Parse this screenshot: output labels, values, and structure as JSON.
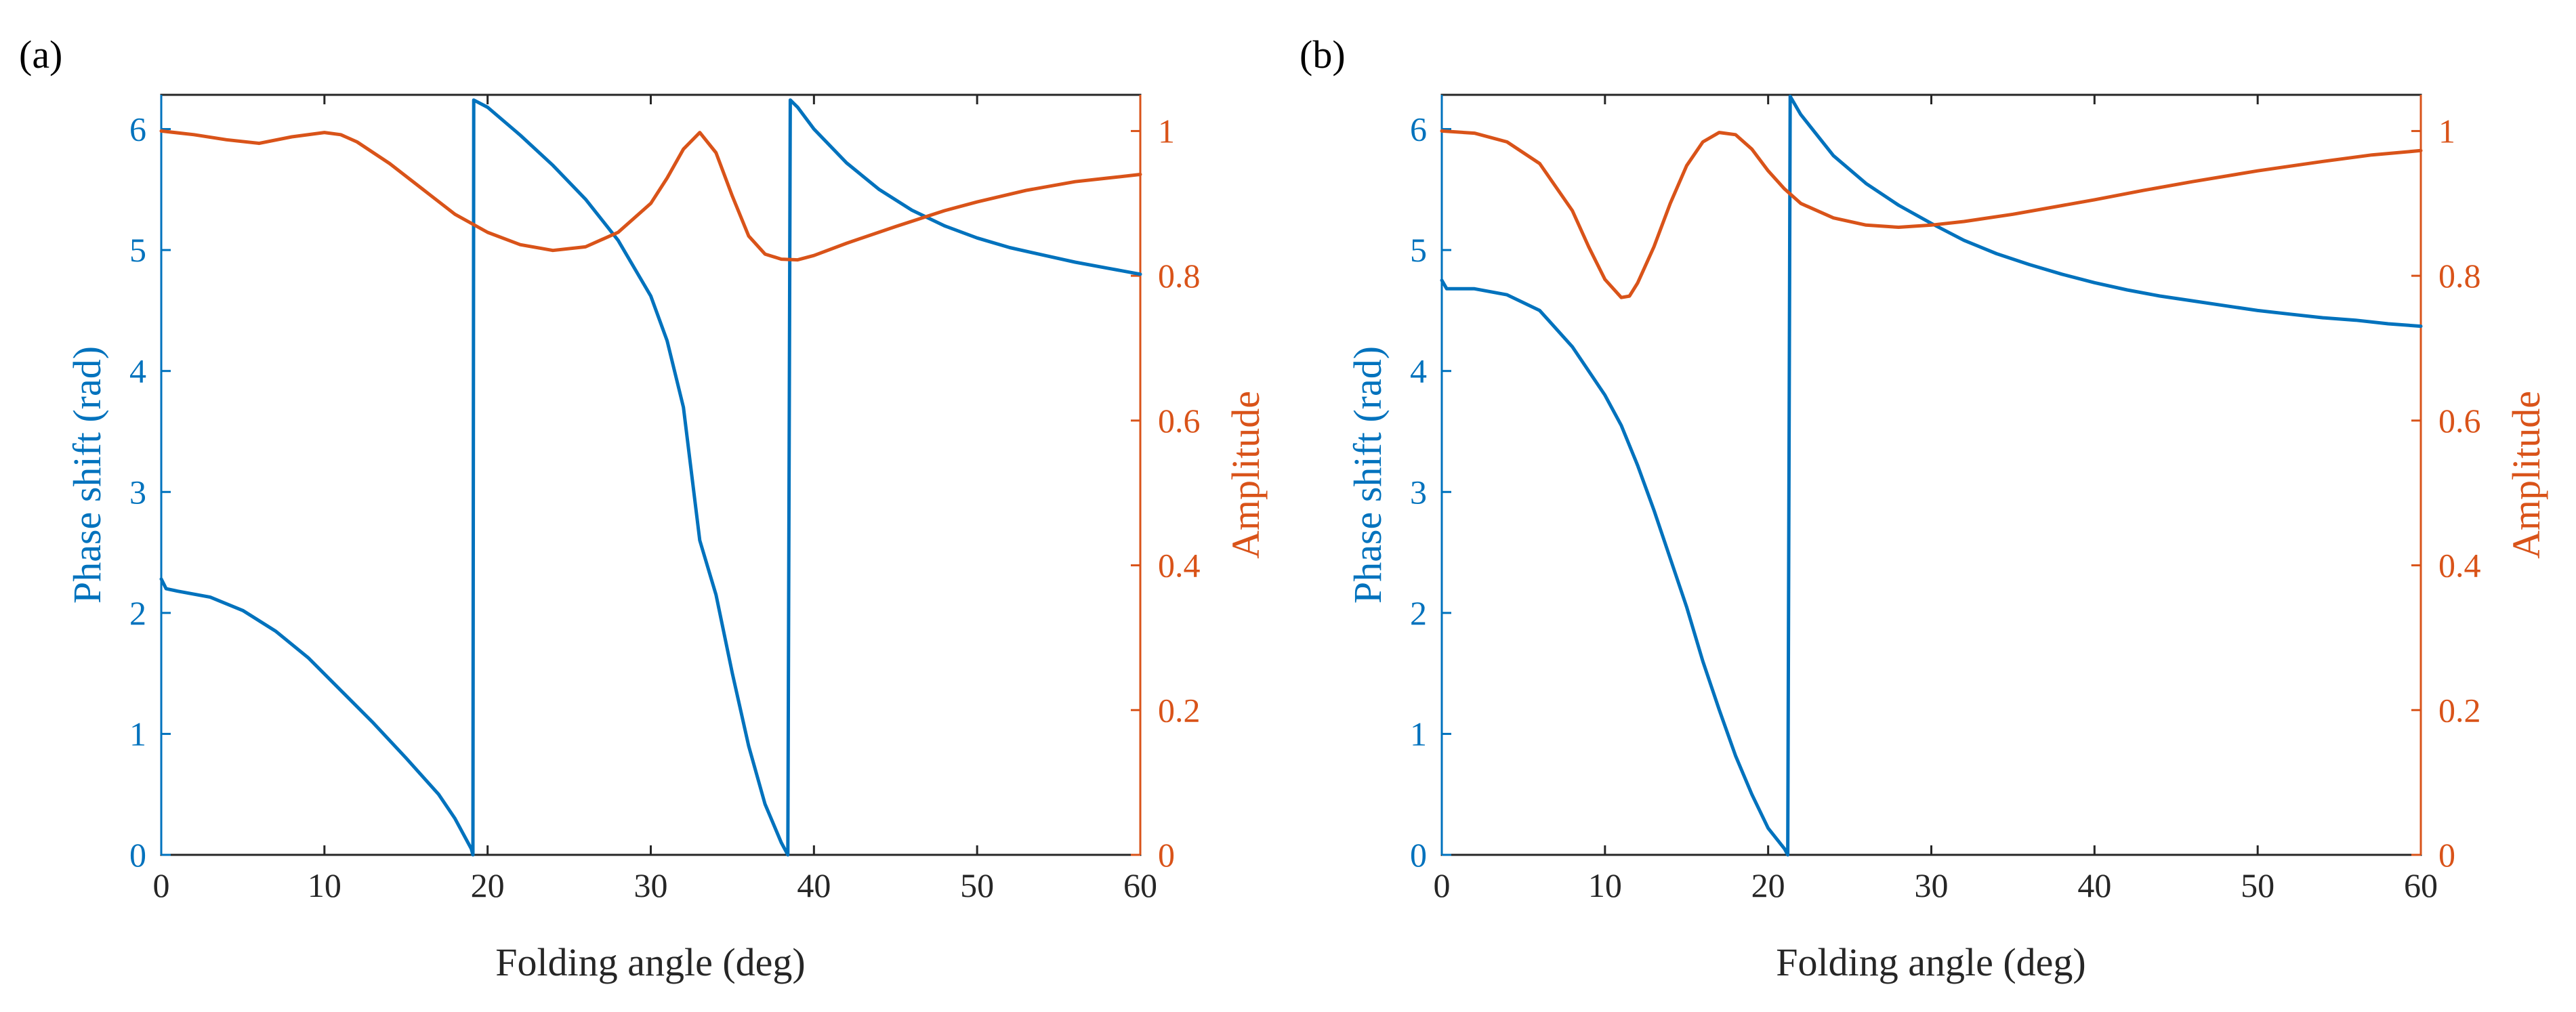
{
  "chart_data": [
    {
      "panel_label": "(a)",
      "type": "line",
      "xlabel": "Folding angle (deg)",
      "ylabel_left": "Phase shift (rad)",
      "ylabel_right": "Amplitude",
      "xlim": [
        0,
        60
      ],
      "ylim_left": [
        0,
        6.283
      ],
      "ylim_right": [
        0,
        1.05
      ],
      "xticks": [
        0,
        10,
        20,
        30,
        40,
        50,
        60
      ],
      "yticks_left": [
        0,
        1,
        2,
        3,
        4,
        5,
        6
      ],
      "yticks_right": [
        0,
        0.2,
        0.4,
        0.6,
        0.8,
        1
      ],
      "yticks_right_labels": [
        "0",
        "0.2",
        "0.4",
        "0.6",
        "0.8",
        "1"
      ],
      "series": [
        {
          "name": "Phase shift",
          "axis": "left",
          "color": "#0072BD",
          "points": [
            [
              0,
              2.28
            ],
            [
              0.3,
              2.2
            ],
            [
              1,
              2.18
            ],
            [
              3,
              2.13
            ],
            [
              5,
              2.02
            ],
            [
              7,
              1.85
            ],
            [
              9,
              1.63
            ],
            [
              11,
              1.36
            ],
            [
              13,
              1.09
            ],
            [
              15,
              0.8
            ],
            [
              17,
              0.5
            ],
            [
              18,
              0.3
            ],
            [
              19,
              0.05
            ],
            [
              19.1,
              0.0
            ],
            [
              19.15,
              6.24
            ],
            [
              20,
              6.18
            ],
            [
              22,
              5.95
            ],
            [
              24,
              5.7
            ],
            [
              26,
              5.42
            ],
            [
              28,
              5.08
            ],
            [
              30,
              4.62
            ],
            [
              31,
              4.25
            ],
            [
              32,
              3.7
            ],
            [
              33,
              2.6
            ],
            [
              34,
              2.15
            ],
            [
              35,
              1.5
            ],
            [
              36,
              0.9
            ],
            [
              37,
              0.42
            ],
            [
              38,
              0.1
            ],
            [
              38.4,
              0.0
            ],
            [
              38.55,
              6.24
            ],
            [
              39,
              6.18
            ],
            [
              40,
              6.0
            ],
            [
              42,
              5.72
            ],
            [
              44,
              5.5
            ],
            [
              46,
              5.33
            ],
            [
              48,
              5.2
            ],
            [
              50,
              5.1
            ],
            [
              52,
              5.02
            ],
            [
              54,
              4.96
            ],
            [
              56,
              4.9
            ],
            [
              58,
              4.85
            ],
            [
              60,
              4.8
            ]
          ]
        },
        {
          "name": "Amplitude",
          "axis": "right",
          "color": "#D95319",
          "points": [
            [
              0,
              1.0
            ],
            [
              2,
              0.995
            ],
            [
              4,
              0.988
            ],
            [
              6,
              0.983
            ],
            [
              8,
              0.992
            ],
            [
              10,
              0.998
            ],
            [
              11,
              0.995
            ],
            [
              12,
              0.985
            ],
            [
              14,
              0.955
            ],
            [
              16,
              0.92
            ],
            [
              18,
              0.885
            ],
            [
              20,
              0.86
            ],
            [
              22,
              0.843
            ],
            [
              24,
              0.835
            ],
            [
              26,
              0.84
            ],
            [
              28,
              0.86
            ],
            [
              30,
              0.9
            ],
            [
              31,
              0.935
            ],
            [
              32,
              0.975
            ],
            [
              33,
              0.998
            ],
            [
              34,
              0.97
            ],
            [
              35,
              0.91
            ],
            [
              36,
              0.855
            ],
            [
              37,
              0.83
            ],
            [
              38,
              0.823
            ],
            [
              39,
              0.822
            ],
            [
              40,
              0.828
            ],
            [
              42,
              0.845
            ],
            [
              45,
              0.868
            ],
            [
              48,
              0.89
            ],
            [
              50,
              0.902
            ],
            [
              53,
              0.918
            ],
            [
              56,
              0.93
            ],
            [
              58,
              0.935
            ],
            [
              60,
              0.94
            ]
          ]
        }
      ]
    },
    {
      "panel_label": "(b)",
      "type": "line",
      "xlabel": "Folding angle (deg)",
      "ylabel_left": "Phase shift (rad)",
      "ylabel_right": "Amplitude",
      "xlim": [
        0,
        60
      ],
      "ylim_left": [
        0,
        6.283
      ],
      "ylim_right": [
        0,
        1.05
      ],
      "xticks": [
        0,
        10,
        20,
        30,
        40,
        50,
        60
      ],
      "yticks_left": [
        0,
        1,
        2,
        3,
        4,
        5,
        6
      ],
      "yticks_right": [
        0,
        0.2,
        0.4,
        0.6,
        0.8,
        1
      ],
      "yticks_right_labels": [
        "0",
        "0.2",
        "0.4",
        "0.6",
        "0.8",
        "1"
      ],
      "series": [
        {
          "name": "Phase shift",
          "axis": "left",
          "color": "#0072BD",
          "points": [
            [
              0,
              4.75
            ],
            [
              0.3,
              4.68
            ],
            [
              2,
              4.68
            ],
            [
              4,
              4.63
            ],
            [
              6,
              4.5
            ],
            [
              8,
              4.2
            ],
            [
              10,
              3.8
            ],
            [
              11,
              3.55
            ],
            [
              12,
              3.22
            ],
            [
              13,
              2.85
            ],
            [
              14,
              2.45
            ],
            [
              15,
              2.05
            ],
            [
              16,
              1.6
            ],
            [
              17,
              1.2
            ],
            [
              18,
              0.82
            ],
            [
              19,
              0.5
            ],
            [
              20,
              0.22
            ],
            [
              21,
              0.05
            ],
            [
              21.2,
              0.0
            ],
            [
              21.35,
              6.27
            ],
            [
              22,
              6.12
            ],
            [
              24,
              5.78
            ],
            [
              26,
              5.55
            ],
            [
              28,
              5.37
            ],
            [
              30,
              5.22
            ],
            [
              32,
              5.08
            ],
            [
              34,
              4.97
            ],
            [
              36,
              4.88
            ],
            [
              38,
              4.8
            ],
            [
              40,
              4.73
            ],
            [
              42,
              4.67
            ],
            [
              44,
              4.62
            ],
            [
              46,
              4.58
            ],
            [
              48,
              4.54
            ],
            [
              50,
              4.5
            ],
            [
              52,
              4.47
            ],
            [
              54,
              4.44
            ],
            [
              56,
              4.42
            ],
            [
              58,
              4.39
            ],
            [
              60,
              4.37
            ]
          ]
        },
        {
          "name": "Amplitude",
          "axis": "right",
          "color": "#D95319",
          "points": [
            [
              0,
              1.0
            ],
            [
              2,
              0.997
            ],
            [
              4,
              0.985
            ],
            [
              6,
              0.955
            ],
            [
              8,
              0.89
            ],
            [
              9,
              0.84
            ],
            [
              10,
              0.795
            ],
            [
              11,
              0.77
            ],
            [
              11.5,
              0.772
            ],
            [
              12,
              0.79
            ],
            [
              13,
              0.84
            ],
            [
              14,
              0.9
            ],
            [
              15,
              0.952
            ],
            [
              16,
              0.985
            ],
            [
              17,
              0.998
            ],
            [
              18,
              0.995
            ],
            [
              19,
              0.975
            ],
            [
              20,
              0.945
            ],
            [
              21,
              0.92
            ],
            [
              22,
              0.9
            ],
            [
              24,
              0.88
            ],
            [
              26,
              0.87
            ],
            [
              28,
              0.867
            ],
            [
              30,
              0.87
            ],
            [
              32,
              0.875
            ],
            [
              35,
              0.885
            ],
            [
              38,
              0.897
            ],
            [
              40,
              0.905
            ],
            [
              43,
              0.918
            ],
            [
              46,
              0.93
            ],
            [
              50,
              0.945
            ],
            [
              54,
              0.958
            ],
            [
              57,
              0.967
            ],
            [
              60,
              0.973
            ]
          ]
        }
      ]
    }
  ]
}
